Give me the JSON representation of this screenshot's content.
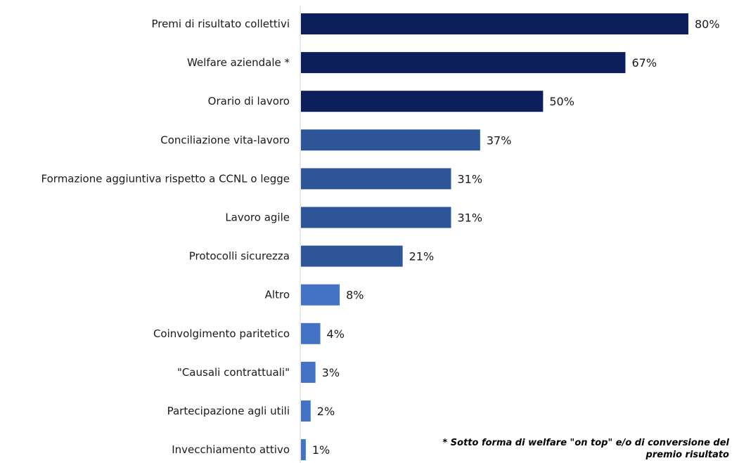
{
  "chart_data": {
    "type": "bar",
    "orientation": "horizontal",
    "title": "",
    "xlabel": "",
    "ylabel": "",
    "categories": [
      "Premi di risultato collettivi",
      "Welfare aziendale *",
      "Orario di lavoro",
      "Conciliazione vita-lavoro",
      "Formazione aggiuntiva rispetto a CCNL o legge",
      "Lavoro agile",
      "Protocolli sicurezza",
      "Altro",
      "Coinvolgimento paritetico",
      "\"Causali contrattuali\"",
      "Partecipazione agli utili",
      "Invecchiamento attivo"
    ],
    "values": [
      80,
      67,
      50,
      37,
      31,
      31,
      21,
      8,
      4,
      3,
      2,
      1
    ],
    "value_labels": [
      "80%",
      "67%",
      "50%",
      "37%",
      "31%",
      "31%",
      "21%",
      "8%",
      "4%",
      "3%",
      "2%",
      "1%"
    ],
    "colors": [
      "#0c1f5c",
      "#0c1f5c",
      "#0c1f5c",
      "#2e5597",
      "#2e5597",
      "#2e5597",
      "#2e5597",
      "#4472c4",
      "#4472c4",
      "#4472c4",
      "#4472c4",
      "#4472c4"
    ],
    "xlim": [
      0,
      85
    ],
    "grid": false,
    "legend": false
  },
  "footnote_line1": "* Sotto forma di welfare \"on top\" e/o di conversione del",
  "footnote_line2": "premio risultato"
}
